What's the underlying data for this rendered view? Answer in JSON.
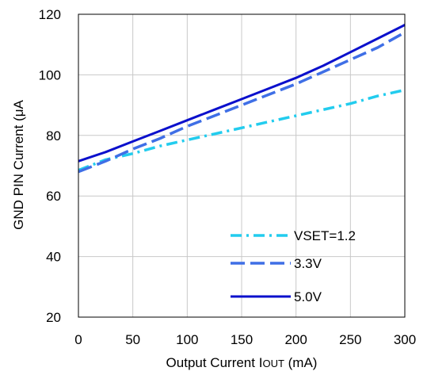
{
  "chart_data": {
    "type": "line",
    "title": "",
    "xlabel": "Output Current IOUT (mA)",
    "xlabel_parts": {
      "prefix": "Output Current ",
      "main": "I",
      "sub": "OUT",
      "suffix": " (mA)"
    },
    "ylabel": "GND PIN Current (μA",
    "xlim": [
      0,
      300
    ],
    "ylim": [
      20,
      120
    ],
    "xticks": [
      "0",
      "50",
      "100",
      "150",
      "200",
      "250",
      "300"
    ],
    "yticks": [
      "20",
      "40",
      "60",
      "80",
      "100",
      "120"
    ],
    "grid": true,
    "legend_position": "bottom-right",
    "series": [
      {
        "name": "VSET=1.2",
        "color": "#22ccee",
        "style": "dash-dot",
        "x": [
          0,
          25,
          50,
          75,
          100,
          125,
          150,
          175,
          200,
          225,
          250,
          275,
          300
        ],
        "y": [
          68.5,
          72,
          74,
          76.5,
          78.5,
          80.5,
          82.5,
          84.5,
          86.5,
          88.5,
          90.5,
          93,
          95
        ]
      },
      {
        "name": "3.3V",
        "color": "#3f6fe6",
        "style": "dash",
        "x": [
          0,
          25,
          50,
          75,
          100,
          125,
          150,
          175,
          200,
          225,
          250,
          275,
          300
        ],
        "y": [
          68,
          71.5,
          75.5,
          79,
          83,
          86.5,
          90,
          93.5,
          97,
          101,
          105,
          109,
          114
        ]
      },
      {
        "name": "5.0V",
        "color": "#0b10cc",
        "style": "solid",
        "x": [
          0,
          25,
          50,
          75,
          100,
          125,
          150,
          175,
          200,
          225,
          250,
          275,
          300
        ],
        "y": [
          71.5,
          74.5,
          78,
          81.5,
          85,
          88.5,
          92,
          95.5,
          99,
          103,
          107.5,
          112,
          116.5
        ]
      }
    ]
  }
}
